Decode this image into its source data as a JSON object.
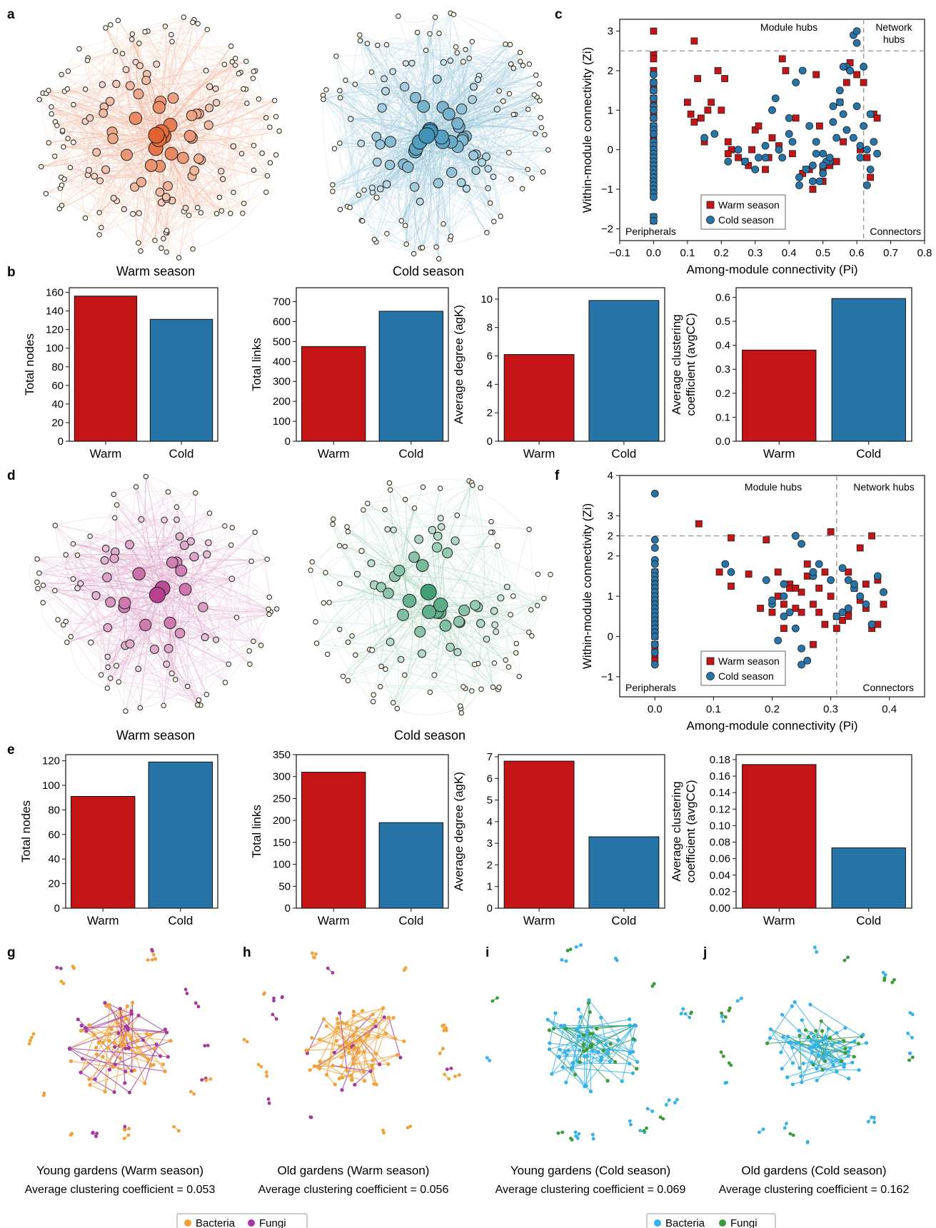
{
  "panel_letters": [
    "a",
    "b",
    "c",
    "d",
    "e",
    "f",
    "g",
    "h",
    "i",
    "j"
  ],
  "colors": {
    "warm": "#c41416",
    "cold": "#2774a8",
    "warm_net_a": "#e1612f",
    "cold_net_a": "#3b91b6",
    "warm_net_d": "#b63b8a",
    "cold_net_d": "#3e9d72",
    "bacteria_gh": "#f0a23a",
    "fungi_gh": "#a43a9c",
    "bacteria_ij": "#34b1e6",
    "fungi_ij": "#3a9b3a"
  },
  "networks_top": {
    "warm_caption": "Warm season",
    "cold_caption": "Cold season"
  },
  "networks_mid": {
    "warm_caption": "Warm season",
    "cold_caption": "Cold season"
  },
  "bottom_networks": [
    {
      "letter": "g",
      "title": "Young gardens (Warm season)",
      "stat": "Average clustering coefficient =  0.053",
      "palette": "gh"
    },
    {
      "letter": "h",
      "title": "Old gardens (Warm season)",
      "stat": "Average clustering coefficient =  0.056",
      "palette": "gh"
    },
    {
      "letter": "i",
      "title": "Young gardens (Cold season)",
      "stat": "Average clustering coefficient =  0.069",
      "palette": "ij"
    },
    {
      "letter": "j",
      "title": "Old gardens (Cold season)",
      "stat": "Average clustering coefficient =  0.162",
      "palette": "ij"
    }
  ],
  "legends_bottom": {
    "left": {
      "bacteria": "Bacteria",
      "fungi": "Fungi"
    },
    "right": {
      "bacteria": "Bacteria",
      "fungi": "Fungi"
    }
  },
  "chart_data": [
    {
      "type": "bar",
      "panel": "b",
      "categories": [
        "Warm",
        "Cold"
      ],
      "values": [
        156,
        131
      ],
      "ylabel": "Total nodes",
      "ylim": [
        0,
        165
      ],
      "yticks": [
        0,
        20,
        40,
        60,
        80,
        100,
        120,
        140,
        160
      ]
    },
    {
      "type": "bar",
      "panel": "b",
      "categories": [
        "Warm",
        "Cold"
      ],
      "values": [
        475,
        652
      ],
      "ylabel": "Total links",
      "ylim": [
        0,
        770
      ],
      "yticks": [
        0,
        100,
        200,
        300,
        400,
        500,
        600,
        700
      ]
    },
    {
      "type": "bar",
      "panel": "b",
      "categories": [
        "Warm",
        "Cold"
      ],
      "values": [
        6.1,
        9.9
      ],
      "ylabel": "Average degree (agK)",
      "ylim": [
        0,
        10.8
      ],
      "yticks": [
        0,
        2,
        4,
        6,
        8,
        10
      ]
    },
    {
      "type": "bar",
      "panel": "b",
      "categories": [
        "Warm",
        "Cold"
      ],
      "values": [
        0.38,
        0.595
      ],
      "ylabel": [
        "Average clustering",
        "coefficient (avgCC)"
      ],
      "ylim": [
        0,
        0.64
      ],
      "yticks": [
        "0.0",
        "0.1",
        "0.2",
        "0.3",
        "0.4",
        "0.5",
        "0.6"
      ]
    },
    {
      "type": "bar",
      "panel": "e",
      "categories": [
        "Warm",
        "Cold"
      ],
      "values": [
        91,
        119
      ],
      "ylabel": "Total nodes",
      "ylim": [
        0,
        125
      ],
      "yticks": [
        0,
        20,
        40,
        60,
        80,
        100,
        120
      ]
    },
    {
      "type": "bar",
      "panel": "e",
      "categories": [
        "Warm",
        "Cold"
      ],
      "values": [
        310,
        195
      ],
      "ylabel": "Total links",
      "ylim": [
        0,
        350
      ],
      "yticks": [
        0,
        50,
        100,
        150,
        200,
        250,
        300,
        350
      ]
    },
    {
      "type": "bar",
      "panel": "e",
      "categories": [
        "Warm",
        "Cold"
      ],
      "values": [
        6.8,
        3.3
      ],
      "ylabel": "Average degree (agK)",
      "ylim": [
        0,
        7.1
      ],
      "yticks": [
        0,
        1,
        2,
        3,
        4,
        5,
        6,
        7
      ]
    },
    {
      "type": "bar",
      "panel": "e",
      "categories": [
        "Warm",
        "Cold"
      ],
      "values": [
        0.174,
        0.073
      ],
      "ylabel": [
        "Average clustering",
        "coefficient (avgCC)"
      ],
      "ylim": [
        0,
        0.186
      ],
      "yticks": [
        "0.00",
        "0.02",
        "0.04",
        "0.06",
        "0.08",
        "0.10",
        "0.12",
        "0.14",
        "0.16",
        "0.18"
      ]
    },
    {
      "type": "scatter",
      "panel": "c",
      "xlabel": "Among-module connectivity (Pi)",
      "ylabel": "Within-module connectivity (Zi)",
      "xlim": [
        -0.1,
        0.8
      ],
      "ylim": [
        -2.3,
        3.3
      ],
      "xticks": [
        "−0.1",
        "0.0",
        "0.1",
        "0.2",
        "0.3",
        "0.4",
        "0.5",
        "0.6",
        "0.7",
        "0.8"
      ],
      "yticks": [
        "−2",
        "−1",
        "0",
        "1",
        "2",
        "3"
      ],
      "thresholds": {
        "pi": 0.62,
        "zi": 2.5
      },
      "quadrant_labels": [
        "Module hubs",
        "Network",
        "hubs",
        "Peripherals",
        "Connectors"
      ],
      "legend": [
        "Warm season",
        "Cold season"
      ],
      "series": [
        {
          "name": "Warm season",
          "marker": "square",
          "x": [
            0,
            0,
            0,
            0,
            0,
            0,
            0,
            0,
            0,
            0,
            0,
            0,
            0,
            0,
            0,
            0,
            0,
            0,
            0,
            0,
            0,
            0,
            0,
            0,
            0,
            0,
            0,
            0,
            0,
            0.12,
            0.13,
            0.14,
            0.15,
            0.19,
            0.2,
            0.22,
            0.25,
            0.28,
            0.3,
            0.35,
            0.38,
            0.42,
            0.45,
            0.48,
            0.5,
            0.53,
            0.55,
            0.58,
            0.62,
            0.65,
            0.1,
            0.11,
            0.17,
            0.23,
            0.27,
            0.33,
            0.37,
            0.41,
            0.44,
            0.47,
            0.5,
            0.52,
            0.56,
            0.6,
            0.64,
            0.12,
            0.16,
            0.22,
            0.29,
            0.34,
            0.39,
            0.46,
            0.49,
            0.54,
            0.57,
            0.61,
            0.63,
            0.66,
            0.21,
            0.31
          ],
          "y": [
            3.0,
            2.4,
            2.3,
            2.0,
            1.7,
            1.6,
            1.5,
            1.3,
            1.2,
            1.0,
            0.9,
            0.8,
            0.6,
            0.5,
            0.4,
            0.3,
            0.2,
            0.1,
            0.0,
            -0.1,
            -0.2,
            -0.4,
            -0.5,
            -0.6,
            -0.8,
            -0.9,
            -1.0,
            -1.7,
            -1.8,
            2.75,
            1.8,
            0.8,
            0.2,
            2.0,
            1.0,
            0.2,
            -0.2,
            -0.4,
            0.5,
            0.3,
            2.3,
            0.8,
            -0.5,
            1.9,
            -0.5,
            -0.3,
            1.2,
            2.2,
            1.7,
            0.9,
            1.2,
            0.9,
            1.2,
            0.0,
            -0.3,
            -0.5,
            0.1,
            -0.1,
            -0.6,
            -1.0,
            -0.8,
            -0.4,
            0.2,
            1.9,
            -0.7,
            0.7,
            1.0,
            -0.1,
            0.0,
            -0.2,
            2.0,
            -0.5,
            0.6,
            -0.3,
            1.7,
            0.0,
            -0.2,
            0.8,
            1.8,
            0.6
          ]
        },
        {
          "name": "Cold season",
          "marker": "circle",
          "x": [
            0,
            0,
            0,
            0,
            0,
            0,
            0,
            0,
            0,
            0,
            0,
            0,
            0,
            0,
            0,
            0,
            0,
            0,
            0,
            0,
            0,
            0,
            0,
            0,
            0,
            0,
            0,
            0.15,
            0.18,
            0.22,
            0.25,
            0.3,
            0.33,
            0.36,
            0.4,
            0.42,
            0.44,
            0.46,
            0.48,
            0.5,
            0.5,
            0.52,
            0.53,
            0.55,
            0.56,
            0.57,
            0.58,
            0.59,
            0.6,
            0.6,
            0.61,
            0.62,
            0.63,
            0.64,
            0.65,
            0.66,
            0.47,
            0.49,
            0.51,
            0.54,
            0.38,
            0.4,
            0.43,
            0.45,
            0.53,
            0.55,
            0.58,
            0.6,
            0.62,
            0.64,
            0.35,
            0.37,
            0.31,
            0.27,
            0.33,
            0.41,
            0.43,
            0.47,
            0.5,
            0.52,
            0.56,
            0.59,
            0.61,
            0.63,
            0.48,
            0.57
          ],
          "y": [
            1.9,
            1.7,
            1.5,
            1.3,
            1.1,
            1.0,
            0.8,
            0.6,
            0.5,
            0.4,
            0.2,
            0.1,
            0.0,
            -0.1,
            -0.2,
            -0.3,
            -0.4,
            -0.5,
            -0.6,
            -0.7,
            -0.8,
            -0.9,
            -1.0,
            -1.1,
            -1.2,
            -1.7,
            -1.8,
            0.3,
            0.4,
            -0.3,
            0.0,
            -0.5,
            -0.2,
            1.3,
            0.8,
            1.7,
            2.0,
            0.6,
            0.2,
            -0.1,
            -0.6,
            -0.3,
            1.1,
            1.5,
            0.9,
            2.1,
            2.0,
            2.9,
            2.7,
            1.1,
            -0.2,
            0.6,
            0.0,
            -0.5,
            0.2,
            -0.1,
            -0.4,
            -0.8,
            -0.3,
            0.3,
            -0.2,
            0.4,
            -0.9,
            -0.5,
            0.7,
            1.2,
            2.0,
            3.0,
            2.1,
            0.9,
            1.0,
            0.0,
            -0.2,
            -0.3,
            0.1,
            0.2,
            -0.7,
            -0.8,
            -0.4,
            -0.2,
            2.1,
            0.3,
            0.1,
            -0.9,
            -0.1,
            0.5
          ]
        }
      ]
    },
    {
      "type": "scatter",
      "panel": "f",
      "xlabel": "Among-module connectivity (Pi)",
      "ylabel": "Within-module connectivity (Zi)",
      "xlim": [
        -0.06,
        0.46
      ],
      "ylim": [
        -1.5,
        4.0
      ],
      "xticks": [
        "0.0",
        "0.1",
        "0.2",
        "0.3",
        "0.4"
      ],
      "yticks": [
        "−1",
        "0",
        "1",
        "2",
        "2",
        "3",
        "4"
      ],
      "ytick_values": [
        -1,
        0,
        1,
        2,
        2.5,
        3,
        4
      ],
      "thresholds": {
        "pi": 0.31,
        "zi": 2.5
      },
      "quadrant_labels": [
        "Module hubs",
        "Network hubs",
        "Peripherals",
        "Connectors"
      ],
      "legend": [
        "Warm season",
        "Cold season"
      ],
      "series": [
        {
          "name": "Warm season",
          "marker": "square",
          "x": [
            0,
            0,
            0,
            0,
            0,
            0,
            0,
            0,
            0,
            0,
            0,
            0,
            0,
            0,
            0,
            0,
            0.075,
            0.13,
            0.11,
            0.13,
            0.16,
            0.18,
            0.19,
            0.2,
            0.21,
            0.22,
            0.23,
            0.24,
            0.25,
            0.26,
            0.27,
            0.28,
            0.29,
            0.3,
            0.3,
            0.31,
            0.32,
            0.33,
            0.34,
            0.35,
            0.36,
            0.37,
            0.38,
            0.39,
            0.37,
            0.35,
            0.33,
            0.31,
            0.29,
            0.27,
            0.25,
            0.23,
            0.21,
            0.33,
            0.36,
            0.38,
            0.28,
            0.26,
            0.24,
            0.22
          ],
          "y": [
            0.8,
            0.4,
            0.1,
            -0.2,
            -0.5,
            -0.6,
            1.3,
            1.0,
            0.6,
            0.3,
            0.0,
            -0.3,
            1.6,
            0.9,
            0.5,
            0.2,
            2.8,
            2.45,
            1.6,
            1.25,
            1.55,
            0.7,
            2.4,
            0.6,
            1.0,
            0.2,
            1.3,
            0.7,
            1.1,
            1.5,
            0.8,
            1.2,
            1.6,
            2.6,
            1.0,
            0.5,
            0.4,
            0.6,
            1.2,
            0.9,
            0.7,
            0.2,
            1.4,
            0.8,
            2.5,
            2.2,
            1.6,
            0.2,
            0.3,
            -0.2,
            0.6,
            1.2,
            1.6,
            0.5,
            1.3,
            0.3,
            0.6,
            1.8,
            1.2,
            0.8
          ]
        },
        {
          "name": "Cold season",
          "marker": "circle",
          "x": [
            0,
            0,
            0,
            0,
            0,
            0,
            0,
            0,
            0,
            0,
            0,
            0,
            0,
            0,
            0,
            0,
            0,
            0,
            0,
            0,
            0,
            0,
            0,
            0,
            0,
            0.12,
            0.13,
            0.19,
            0.2,
            0.22,
            0.23,
            0.24,
            0.25,
            0.26,
            0.27,
            0.28,
            0.25,
            0.24,
            0.22,
            0.21,
            0.32,
            0.33,
            0.34,
            0.35,
            0.36,
            0.37,
            0.31,
            0.32,
            0.33,
            0.34,
            0.38,
            0.39,
            0.2,
            0.27,
            0.3,
            0.22,
            0.25
          ],
          "y": [
            3.55,
            2.4,
            2.2,
            1.9,
            1.8,
            1.6,
            1.5,
            1.4,
            1.3,
            1.2,
            1.1,
            1.0,
            0.9,
            0.8,
            0.7,
            0.6,
            0.5,
            0.4,
            0.3,
            0.2,
            0.1,
            0.0,
            -0.2,
            -0.4,
            -0.7,
            1.8,
            1.6,
            1.4,
            0.8,
            1.0,
            0.6,
            0.2,
            -0.3,
            -0.6,
            1.5,
            1.8,
            2.3,
            2.5,
            1.3,
            -0.1,
            1.7,
            1.4,
            1.2,
            1.0,
            0.8,
            0.3,
            0.5,
            0.6,
            0.7,
            1.3,
            1.5,
            1.1,
            0.9,
            1.6,
            1.4,
            0.5,
            -0.7
          ]
        }
      ]
    }
  ]
}
